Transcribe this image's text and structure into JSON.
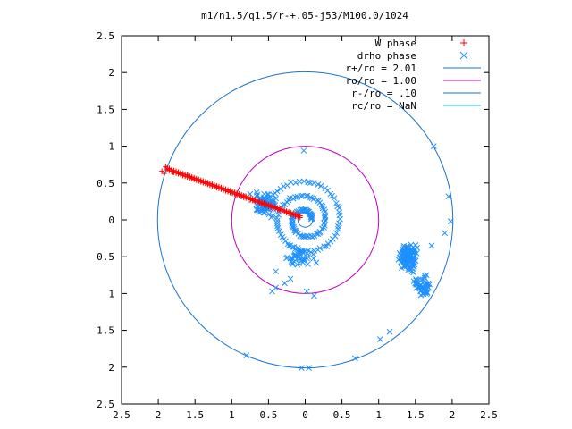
{
  "chart_data": {
    "type": "scatter",
    "title": "m1/n1.5/q1.5/r-+.05-j53/M100.0/1024",
    "xlabel": "",
    "ylabel": "",
    "xlim": [
      -2.5,
      2.5
    ],
    "ylim": [
      -2.5,
      2.5
    ],
    "x_ticks": [
      -2.5,
      -2,
      -1.5,
      -1,
      -0.5,
      0,
      0.5,
      1,
      1.5,
      2,
      2.5
    ],
    "y_ticks": [
      -2.5,
      -2,
      -1.5,
      -1,
      -0.5,
      0,
      0.5,
      1,
      1.5,
      2,
      2.5
    ],
    "x_tick_labels": [
      "2.5",
      "2",
      "1.5",
      "1",
      "0.5",
      "0",
      "0.5",
      "1",
      "1.5",
      "2",
      "2.5"
    ],
    "y_tick_labels": [
      "2.5",
      "2",
      "1.5",
      "1",
      "0.5",
      "0",
      "0.5",
      "1",
      "1.5",
      "2",
      "2.5"
    ],
    "grid": false,
    "legend_position": "top-right",
    "w_phase": {
      "name": "W phase",
      "color": "#ff0000",
      "marker": "plus",
      "segment": {
        "x0": -1.88,
        "y0": 0.68,
        "x1": -0.07,
        "y1": 0.03,
        "count": 60
      },
      "extra": [
        [
          -1.95,
          0.66
        ],
        [
          -1.9,
          0.72
        ],
        [
          -1.85,
          0.7
        ],
        [
          -1.8,
          0.65
        ],
        [
          -1.92,
          0.63
        ],
        [
          -1.6,
          0.61
        ],
        [
          -1.7,
          0.63
        ]
      ]
    },
    "drho_phase": {
      "name": "drho phase",
      "color": "#1e90ff",
      "marker": "cross",
      "spiral_arcs": [
        {
          "cx": 0,
          "cy": 0,
          "r0": 0.08,
          "r1": 0.55,
          "t0": 0,
          "t1": 15,
          "count": 150
        }
      ],
      "clusters": [
        {
          "cx": 1.4,
          "cy": -0.5,
          "sx": 0.15,
          "sy": 0.25,
          "count": 150
        },
        {
          "cx": 1.6,
          "cy": -0.9,
          "sx": 0.15,
          "sy": 0.2,
          "count": 50
        },
        {
          "cx": -0.55,
          "cy": 0.2,
          "sx": 0.22,
          "sy": 0.2,
          "count": 90
        },
        {
          "cx": -0.1,
          "cy": -0.5,
          "sx": 0.3,
          "sy": 0.2,
          "count": 40
        }
      ],
      "points": [
        [
          -0.02,
          0.94
        ],
        [
          1.75,
          1.0
        ],
        [
          1.95,
          0.32
        ],
        [
          1.98,
          -0.02
        ],
        [
          1.9,
          -0.18
        ],
        [
          0.02,
          -0.97
        ],
        [
          0.12,
          -1.03
        ],
        [
          -0.4,
          -0.92
        ],
        [
          -0.45,
          -0.97
        ],
        [
          1.02,
          -1.62
        ],
        [
          1.15,
          -1.52
        ],
        [
          0.68,
          -1.88
        ],
        [
          -0.05,
          -2.01
        ],
        [
          0.05,
          -2.01
        ],
        [
          -0.8,
          -1.84
        ],
        [
          -0.85,
          0.32
        ],
        [
          -0.75,
          0.35
        ],
        [
          -0.4,
          -0.7
        ],
        [
          -0.2,
          -0.8
        ],
        [
          -0.28,
          -0.86
        ],
        [
          1.72,
          -0.35
        ]
      ]
    },
    "circles": [
      {
        "name": "r+/ro = 2.01",
        "r": 2.01,
        "color": "#1874cd"
      },
      {
        "name": "ro/ro = 1.00",
        "r": 1.0,
        "color": "#c000c0"
      },
      {
        "name": "r-/ro = .10",
        "r": 0.1,
        "color": "#1874cd"
      },
      {
        "name": "rc/ro = NaN",
        "r": null,
        "color": "#00bfff"
      }
    ]
  }
}
